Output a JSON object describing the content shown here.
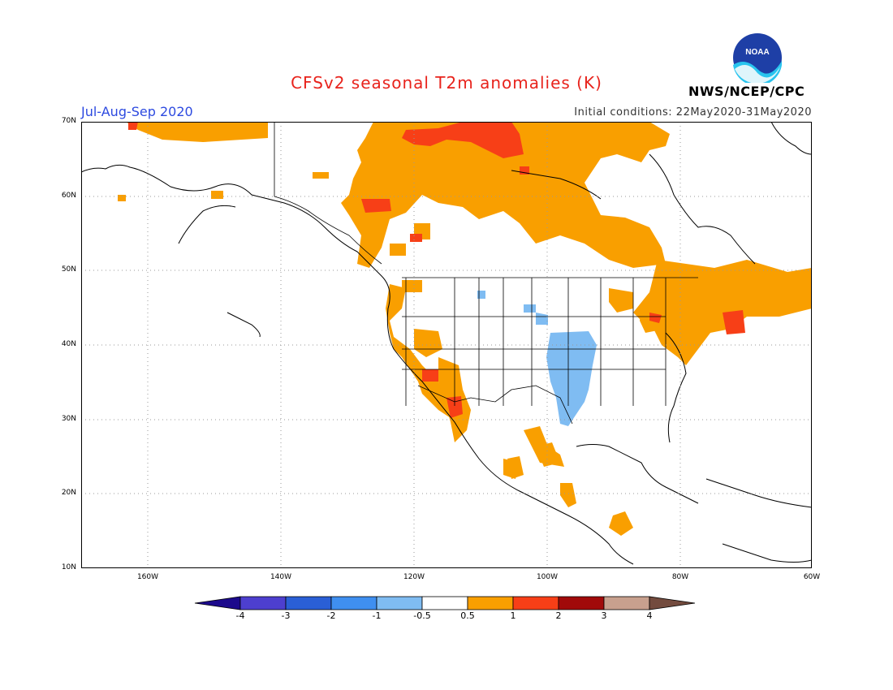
{
  "header": {
    "title": "CFSv2 seasonal T2m anomalies (K)",
    "season": "Jul-Aug-Sep 2020",
    "initial_conditions": "Initial conditions: 22May2020-31May2020",
    "agency": "NWS/NCEP/CPC",
    "logo_text": "NOAA"
  },
  "map": {
    "lat_labels": [
      "70N",
      "60N",
      "50N",
      "40N",
      "30N",
      "20N",
      "10N"
    ],
    "lon_labels": [
      "160W",
      "140W",
      "120W",
      "100W",
      "80W",
      "60W"
    ],
    "extent": {
      "lon_min": -172,
      "lon_max": -62,
      "lat_min": 10,
      "lat_max": 70
    }
  },
  "colorbar": {
    "labels": [
      "-4",
      "-3",
      "-2",
      "-1",
      "-0.5",
      "0.5",
      "1",
      "2",
      "3",
      "4"
    ],
    "colors": [
      "#1c0a8c",
      "#4d3fcf",
      "#2a5fd6",
      "#3f8ff0",
      "#7fbcf2",
      "#ffffff",
      "#f99f00",
      "#f73f17",
      "#a10a0a",
      "#c8a08e",
      "#734b3e"
    ]
  }
}
